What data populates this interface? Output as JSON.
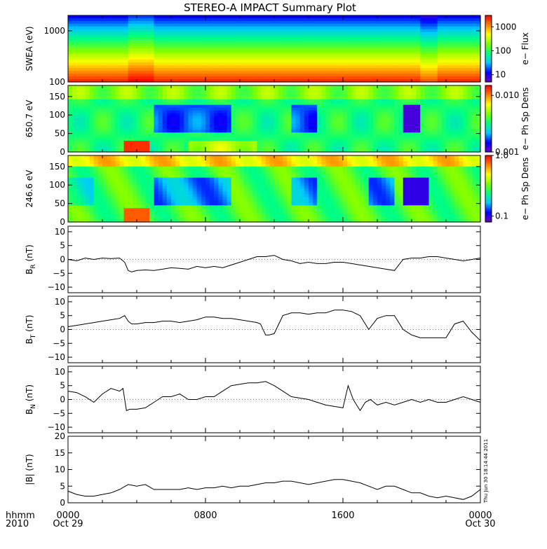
{
  "title": "STEREO-A IMPACT Summary Plot",
  "footer": {
    "hhmm": "hhmm",
    "year": "2010",
    "x_ticks": [
      {
        "label": "0000",
        "sub": "Oct 29",
        "hour": 0
      },
      {
        "label": "0800",
        "sub": "",
        "hour": 8
      },
      {
        "label": "1600",
        "sub": "",
        "hour": 16
      },
      {
        "label": "0000",
        "sub": "Oct 30",
        "hour": 24
      }
    ],
    "timestamp": "Thu Jun 30 18:14:44 2011"
  },
  "colors": {
    "spectrogram_scale": [
      "#6a00c8",
      "#0000ff",
      "#00c8ff",
      "#00ff80",
      "#80ff00",
      "#ffff00",
      "#ff8000",
      "#ff0000"
    ],
    "line": "#000000",
    "axis": "#000000"
  },
  "chart_data": [
    {
      "type": "heatmap",
      "name": "swea",
      "ylabel": "SWEA (eV)",
      "yscale": "log",
      "ylim": [
        100,
        2000
      ],
      "y_ticks": [
        "1000",
        "100"
      ],
      "y_tick_values": [
        1000,
        100
      ],
      "colorbar": {
        "label": "e− Flux",
        "scale": "log",
        "range": [
          5,
          3000
        ],
        "ticks": [
          "1000",
          "100",
          "10"
        ],
        "tick_values": [
          1000,
          100,
          10
        ]
      },
      "xlim_hours": [
        0,
        24
      ]
    },
    {
      "type": "heatmap",
      "name": "pad650",
      "ylabel": "650.7 eV",
      "ylim": [
        0,
        180
      ],
      "y_ticks": [
        "150",
        "100",
        "50",
        "0"
      ],
      "y_tick_values": [
        150,
        100,
        50,
        0
      ],
      "colorbar": {
        "label": "e− Ph Sp Dens",
        "scale": "log",
        "range": [
          0.001,
          0.015
        ],
        "ticks": [
          "0.010",
          "0.001"
        ],
        "tick_values": [
          0.01,
          0.001
        ]
      },
      "xlim_hours": [
        0,
        24
      ]
    },
    {
      "type": "heatmap",
      "name": "pad246",
      "ylabel": "246.6 eV",
      "ylim": [
        0,
        180
      ],
      "y_ticks": [
        "150",
        "100",
        "50",
        "0"
      ],
      "y_tick_values": [
        150,
        100,
        50,
        0
      ],
      "colorbar": {
        "label": "e− Ph Sp Dens",
        "scale": "log",
        "range": [
          0.08,
          1.0
        ],
        "ticks": [
          "1.0",
          "0.1"
        ],
        "tick_values": [
          1.0,
          0.1
        ]
      },
      "xlim_hours": [
        0,
        24
      ]
    },
    {
      "type": "line",
      "name": "br",
      "ylabel": "B",
      "ylabel_sub": "R",
      "ylabel_unit": "(nT)",
      "ylim": [
        -12,
        12
      ],
      "y_ticks": [
        "10",
        "5",
        "0",
        "−5",
        "−10"
      ],
      "y_tick_values": [
        10,
        5,
        0,
        -5,
        -10
      ],
      "x": [
        0,
        0.5,
        1.0,
        1.5,
        2.0,
        2.5,
        3.0,
        3.3,
        3.5,
        3.7,
        4.0,
        4.5,
        5.0,
        5.5,
        6.0,
        6.5,
        7.0,
        7.5,
        8.0,
        8.5,
        9.0,
        9.5,
        10.0,
        10.5,
        11.0,
        11.5,
        12.0,
        12.5,
        13.0,
        13.5,
        14.0,
        14.5,
        15.0,
        15.5,
        16.0,
        16.5,
        17.0,
        17.5,
        18.0,
        18.5,
        19.0,
        19.5,
        20.0,
        20.5,
        21.0,
        21.5,
        22.0,
        22.5,
        23.0,
        23.5,
        24.0
      ],
      "y": [
        0,
        -0.5,
        0.5,
        0,
        0.5,
        0.3,
        0.5,
        -1,
        -4,
        -4.5,
        -4,
        -3.8,
        -4,
        -3.5,
        -3,
        -3.2,
        -3.5,
        -2.5,
        -3,
        -2.5,
        -3,
        -2,
        -1,
        0,
        1,
        1,
        1.5,
        0,
        -0.5,
        -1.5,
        -1,
        -1.5,
        -1.5,
        -1,
        -1,
        -1.5,
        -2,
        -2.5,
        -3,
        -3.5,
        -4,
        0,
        0.5,
        0.5,
        1,
        1,
        0.5,
        0,
        -0.5,
        0,
        0.5
      ]
    },
    {
      "type": "line",
      "name": "bt",
      "ylabel": "B",
      "ylabel_sub": "T",
      "ylabel_unit": "(nT)",
      "ylim": [
        -12,
        12
      ],
      "y_ticks": [
        "10",
        "5",
        "0",
        "−5",
        "−10"
      ],
      "y_tick_values": [
        10,
        5,
        0,
        -5,
        -10
      ],
      "x": [
        0,
        0.5,
        1.0,
        1.5,
        2.0,
        2.5,
        3.0,
        3.3,
        3.5,
        3.7,
        4.0,
        4.5,
        5.0,
        5.5,
        6.0,
        6.5,
        7.0,
        7.5,
        8.0,
        8.5,
        9.0,
        9.5,
        10.0,
        10.5,
        11.0,
        11.2,
        11.5,
        11.7,
        12.0,
        12.5,
        13.0,
        13.5,
        14.0,
        14.5,
        15.0,
        15.5,
        16.0,
        16.5,
        17.0,
        17.5,
        18.0,
        18.5,
        19.0,
        19.5,
        20.0,
        20.5,
        21.0,
        21.5,
        22.0,
        22.5,
        23.0,
        23.5,
        24.0
      ],
      "y": [
        1,
        1.5,
        2,
        2.5,
        3,
        3.5,
        4,
        5,
        3,
        2,
        2,
        2.5,
        2.5,
        3,
        3,
        2.5,
        3,
        3.5,
        4.5,
        4.5,
        4,
        4,
        3.5,
        3,
        2.5,
        2,
        -2,
        -2,
        -1.5,
        5,
        6,
        6,
        5.5,
        6,
        6,
        7,
        7,
        6.5,
        5,
        0,
        4,
        5,
        5,
        0,
        -2,
        -3,
        -3,
        -3,
        -3,
        2,
        3,
        -1,
        -4
      ]
    },
    {
      "type": "line",
      "name": "bn",
      "ylabel": "B",
      "ylabel_sub": "N",
      "ylabel_unit": "(nT)",
      "ylim": [
        -12,
        12
      ],
      "y_ticks": [
        "10",
        "5",
        "0",
        "−5",
        "−10"
      ],
      "y_tick_values": [
        10,
        5,
        0,
        -5,
        -10
      ],
      "x": [
        0,
        0.5,
        1.0,
        1.5,
        2.0,
        2.5,
        3.0,
        3.2,
        3.4,
        3.6,
        4.0,
        4.5,
        5.0,
        5.5,
        6.0,
        6.5,
        7.0,
        7.5,
        8.0,
        8.5,
        9.0,
        9.5,
        10.0,
        10.5,
        11.0,
        11.5,
        12.0,
        12.5,
        13.0,
        13.5,
        14.0,
        14.5,
        15.0,
        15.5,
        16.0,
        16.3,
        16.6,
        17.0,
        17.3,
        17.6,
        18.0,
        18.5,
        19.0,
        19.5,
        20.0,
        20.5,
        21.0,
        21.5,
        22.0,
        22.5,
        23.0,
        23.5,
        24.0
      ],
      "y": [
        3,
        2.5,
        1,
        -1,
        2,
        4,
        3,
        4,
        -4,
        -3.5,
        -3.5,
        -3,
        -1,
        1,
        1,
        2,
        0,
        0,
        1,
        1,
        3,
        5,
        5.5,
        6,
        6,
        6.5,
        5,
        3,
        1,
        0.5,
        0,
        -1,
        -2,
        -2.5,
        -3,
        5,
        0,
        -4,
        -1,
        0,
        -2,
        -1,
        -2,
        -1,
        0,
        -1,
        0,
        -1,
        -1,
        0,
        1,
        0,
        -1
      ]
    },
    {
      "type": "line",
      "name": "bmag",
      "ylabel": "|B|",
      "ylabel_unit": "(nT)",
      "ylim": [
        0,
        20
      ],
      "y_ticks": [
        "20",
        "15",
        "10",
        "5",
        "0"
      ],
      "y_tick_values": [
        20,
        15,
        10,
        5,
        0
      ],
      "x": [
        0,
        0.5,
        1.0,
        1.5,
        2.0,
        2.5,
        3.0,
        3.5,
        4.0,
        4.5,
        5.0,
        5.5,
        6.0,
        6.5,
        7.0,
        7.5,
        8.0,
        8.5,
        9.0,
        9.5,
        10.0,
        10.5,
        11.0,
        11.5,
        12.0,
        12.5,
        13.0,
        13.5,
        14.0,
        14.5,
        15.0,
        15.5,
        16.0,
        16.5,
        17.0,
        17.5,
        18.0,
        18.5,
        19.0,
        19.5,
        20.0,
        20.5,
        21.0,
        21.5,
        22.0,
        22.5,
        23.0,
        23.5,
        24.0
      ],
      "y": [
        3.5,
        2.5,
        2,
        2,
        2.5,
        3,
        4,
        5.5,
        5,
        5.5,
        4,
        4,
        4,
        4,
        4.5,
        4,
        4.5,
        4.5,
        5,
        4.5,
        5,
        5,
        5.5,
        6,
        6,
        6.5,
        6.5,
        6,
        5.5,
        6,
        6.5,
        7,
        7,
        6.5,
        6,
        5,
        4,
        5,
        5,
        4,
        3,
        3,
        2,
        1.5,
        2,
        1.5,
        1,
        2,
        4
      ]
    }
  ]
}
